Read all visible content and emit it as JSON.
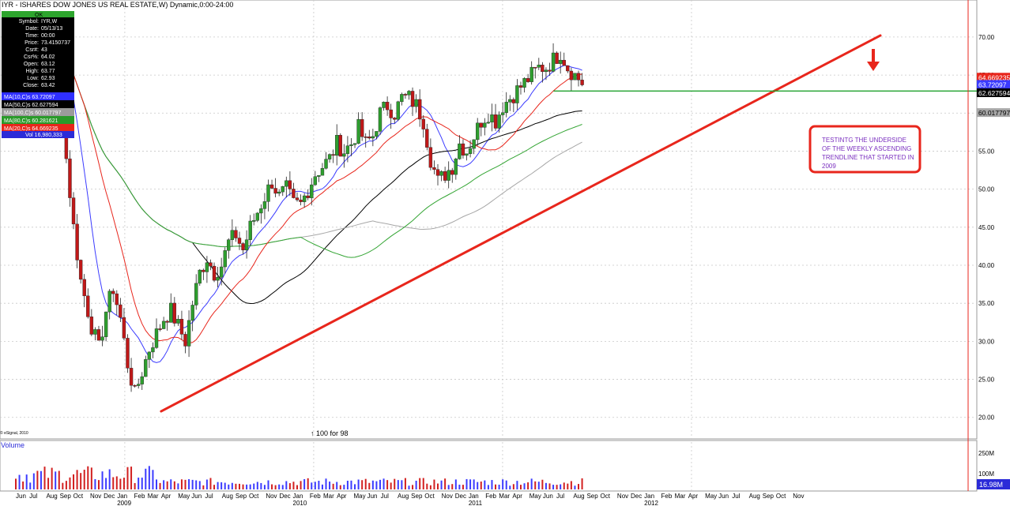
{
  "chart_data": {
    "type": "candlestick",
    "title": "IYR - ISHARES DOW JONES US REAL ESTATE,W) Dynamic,0:00-24:00",
    "ylim": [
      18,
      73
    ],
    "y_ticks": [
      20.0,
      25.0,
      30.0,
      35.0,
      40.0,
      45.0,
      50.0,
      55.0,
      60.0,
      65.0,
      70.0
    ],
    "y_tick_labels": [
      "20.00",
      "25.00",
      "30.00",
      "35.00",
      "40.00",
      "45.00",
      "50.00",
      "55.00",
      "60.00",
      "65.00",
      "70.00"
    ],
    "x_month_labels": [
      {
        "label": "Jun",
        "week": 0
      },
      {
        "label": "Jul",
        "week": 4
      },
      {
        "label": "Aug",
        "week": 9
      },
      {
        "label": "Sep",
        "week": 13
      },
      {
        "label": "Oct",
        "week": 17
      },
      {
        "label": "Nov",
        "week": 22
      },
      {
        "label": "Dec",
        "week": 26
      },
      {
        "label": "Jan",
        "week": 30
      },
      {
        "label": "Feb",
        "week": 35
      },
      {
        "label": "Mar",
        "week": 39
      },
      {
        "label": "Apr",
        "week": 43
      },
      {
        "label": "May",
        "week": 48
      },
      {
        "label": "Jun",
        "week": 52
      },
      {
        "label": "Jul",
        "week": 56
      },
      {
        "label": "Aug",
        "week": 61
      },
      {
        "label": "Sep",
        "week": 65
      },
      {
        "label": "Oct",
        "week": 69
      },
      {
        "label": "Nov",
        "week": 74
      },
      {
        "label": "Dec",
        "week": 78
      },
      {
        "label": "Jan",
        "week": 82
      },
      {
        "label": "Feb",
        "week": 87
      },
      {
        "label": "Mar",
        "week": 91
      },
      {
        "label": "Apr",
        "week": 95
      },
      {
        "label": "May",
        "week": 100
      },
      {
        "label": "Jun",
        "week": 104
      },
      {
        "label": "Jul",
        "week": 108
      },
      {
        "label": "Aug",
        "week": 113
      },
      {
        "label": "Sep",
        "week": 117
      },
      {
        "label": "Oct",
        "week": 121
      },
      {
        "label": "Nov",
        "week": 126
      },
      {
        "label": "Dec",
        "week": 130
      },
      {
        "label": "Jan",
        "week": 134
      },
      {
        "label": "Feb",
        "week": 139
      },
      {
        "label": "Mar",
        "week": 143
      },
      {
        "label": "Apr",
        "week": 147
      },
      {
        "label": "May",
        "week": 152
      },
      {
        "label": "Jun",
        "week": 156
      },
      {
        "label": "Jul",
        "week": 160
      },
      {
        "label": "Aug",
        "week": 165
      },
      {
        "label": "Sep",
        "week": 169
      },
      {
        "label": "Oct",
        "week": 173
      },
      {
        "label": "Nov",
        "week": 178
      },
      {
        "label": "Dec",
        "week": 182
      },
      {
        "label": "Jan",
        "week": 186
      },
      {
        "label": "Feb",
        "week": 191
      },
      {
        "label": "Mar",
        "week": 195
      },
      {
        "label": "Apr",
        "week": 199
      },
      {
        "label": "May",
        "week": 204
      },
      {
        "label": "Jun",
        "week": 208
      },
      {
        "label": "Jul",
        "week": 212
      },
      {
        "label": "Aug",
        "week": 217
      },
      {
        "label": "Sep",
        "week": 221
      },
      {
        "label": "Oct",
        "week": 225
      },
      {
        "label": "Nov",
        "week": 230
      }
    ],
    "x_year_labels": [
      {
        "label": "2009",
        "week": 30
      },
      {
        "label": "2010",
        "week": 82
      },
      {
        "label": "2011",
        "week": 134
      },
      {
        "label": "2012",
        "week": 186
      }
    ],
    "weeks_total": 238,
    "price_keypoints": [
      [
        0,
        70
      ],
      [
        8,
        70
      ],
      [
        12,
        66
      ],
      [
        14,
        54
      ],
      [
        16,
        45
      ],
      [
        18,
        38
      ],
      [
        21,
        32
      ],
      [
        23,
        29
      ],
      [
        25,
        34
      ],
      [
        27,
        37
      ],
      [
        29,
        33
      ],
      [
        31,
        27
      ],
      [
        33,
        23
      ],
      [
        35,
        26
      ],
      [
        37,
        29
      ],
      [
        39,
        31
      ],
      [
        41,
        33
      ],
      [
        43,
        34
      ],
      [
        45,
        32
      ],
      [
        47,
        30
      ],
      [
        49,
        35
      ],
      [
        51,
        39
      ],
      [
        53,
        41
      ],
      [
        55,
        39
      ],
      [
        57,
        40
      ],
      [
        59,
        43
      ],
      [
        61,
        44
      ],
      [
        63,
        42
      ],
      [
        65,
        45
      ],
      [
        67,
        47
      ],
      [
        69,
        49
      ],
      [
        71,
        51
      ],
      [
        73,
        49
      ],
      [
        75,
        50
      ],
      [
        77,
        48
      ],
      [
        79,
        48
      ],
      [
        81,
        50
      ],
      [
        83,
        52
      ],
      [
        85,
        53
      ],
      [
        87,
        54
      ],
      [
        89,
        56
      ],
      [
        91,
        55
      ],
      [
        93,
        56
      ],
      [
        95,
        58
      ],
      [
        97,
        56
      ],
      [
        99,
        57
      ],
      [
        101,
        60
      ],
      [
        103,
        61
      ],
      [
        105,
        60
      ],
      [
        107,
        62
      ],
      [
        109,
        62
      ],
      [
        111,
        61
      ],
      [
        113,
        59
      ],
      [
        115,
        54
      ],
      [
        117,
        51
      ],
      [
        119,
        52
      ],
      [
        121,
        53
      ],
      [
        123,
        56
      ],
      [
        125,
        55
      ],
      [
        127,
        57
      ],
      [
        129,
        59
      ],
      [
        131,
        60
      ],
      [
        133,
        59
      ],
      [
        135,
        61
      ],
      [
        137,
        62
      ],
      [
        139,
        63
      ],
      [
        141,
        64
      ],
      [
        143,
        65
      ],
      [
        145,
        66
      ],
      [
        147,
        66
      ],
      [
        149,
        67
      ],
      [
        151,
        68
      ],
      [
        153,
        66
      ],
      [
        155,
        65
      ],
      [
        157,
        64
      ]
    ],
    "trendline": {
      "from": [
        40,
        20.8
      ],
      "to": [
        238,
        70.2
      ],
      "color": "#e8261c"
    },
    "resistance_line": {
      "y": 62.9,
      "from_week": 148,
      "color": "#1fa12d"
    },
    "moving_averages": [
      {
        "name": "MA(10,C)s",
        "value": "63.72097",
        "color": "#3b3bff"
      },
      {
        "name": "MA(50,C)s",
        "value": "62.627594",
        "color": "#000000"
      },
      {
        "name": "MA(100,C)s",
        "value": "60.017797",
        "color": "#a7a7a7"
      },
      {
        "name": "MA(80,C)s",
        "value": "60.281621",
        "color": "#34a534"
      },
      {
        "name": "MA(20,C)s",
        "value": "64.669235",
        "color": "#e8261c"
      }
    ],
    "right_badges": [
      {
        "text": "64.669235",
        "y": 64.669235,
        "bg": "#e8261c",
        "fg": "#ffffff"
      },
      {
        "text": "63.72097",
        "y": 63.72097,
        "bg": "#3b3bff",
        "fg": "#ffffff"
      },
      {
        "text": "62.627594",
        "y": 62.627594,
        "bg": "#000000",
        "fg": "#ffffff"
      },
      {
        "text": "60.017797",
        "y": 60.017797,
        "bg": "#a7a7a7",
        "fg": "#000000"
      }
    ],
    "volume_panel": {
      "label": "Volume",
      "ticks": [
        "250M",
        "100M"
      ],
      "last_badge": "16.98M"
    }
  },
  "info_box": {
    "header": "OK",
    "rows": [
      {
        "k": "Symbol",
        "v": "IYR,W"
      },
      {
        "k": "Date",
        "v": "05/13/13"
      },
      {
        "k": "Time",
        "v": "00:00"
      },
      {
        "k": "Price",
        "v": "73.4150737"
      },
      {
        "k": "Csr#",
        "v": "43"
      },
      {
        "k": "Csr%",
        "v": "64.02"
      },
      {
        "k": "Open",
        "v": "63.12"
      },
      {
        "k": "High",
        "v": "63.77"
      },
      {
        "k": "Low",
        "v": "62.93"
      },
      {
        "k": "Close",
        "v": "63.42"
      }
    ],
    "ma_rows": [
      {
        "text": "MA(10,C)s 63.72097",
        "bg": "#2f2fff",
        "fg": "#ffffff"
      },
      {
        "text": "MA(50,C)s 62.627594",
        "bg": "#000000",
        "fg": "#ffffff"
      },
      {
        "text": "MA(100,C)s 60.017797",
        "bg": "#9b9b9b",
        "fg": "#ffffff"
      },
      {
        "text": "MA(80,C)s 60.281621",
        "bg": "#2a9a2a",
        "fg": "#ffffff"
      },
      {
        "text": "MA(20,C)s 64.669235",
        "bg": "#e8261c",
        "fg": "#ffffff"
      }
    ],
    "vol_row": "Vol 16,980,333"
  },
  "annotation": {
    "text_lines": [
      "TESTINTG THE UNDERSIDE",
      "OF THE WEEKLY ASCENDING",
      "TRENDLINE THAT STARTED IN",
      "2009"
    ]
  },
  "split_note": "100 for 98",
  "copyright": "© eSignal, 2010"
}
